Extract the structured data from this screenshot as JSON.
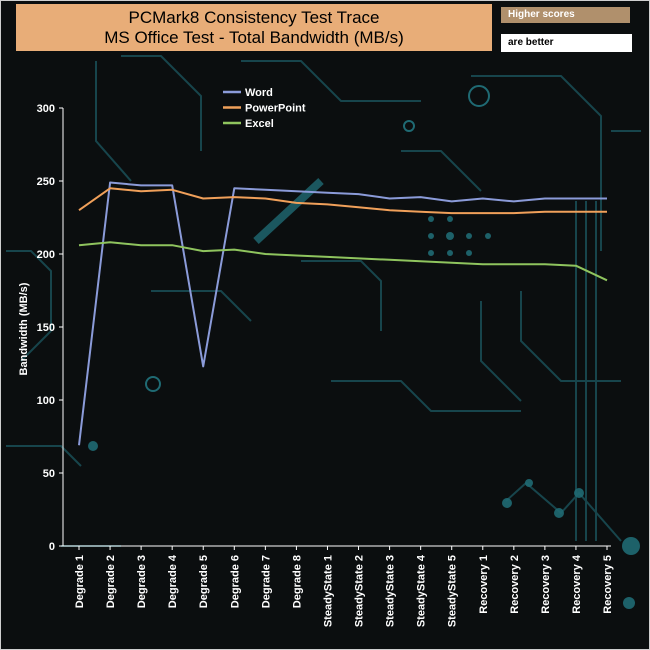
{
  "header": {
    "title_line1": "PCMark8 Consistency Test Trace",
    "title_line2": "MS Office Test - Total Bandwidth (MB/s)",
    "note_line1": "Higher scores",
    "note_line2": "are better"
  },
  "chart_data": {
    "type": "line",
    "title": "PCMark8 Consistency Test Trace MS Office Test - Total Bandwidth (MB/s)",
    "xlabel": "",
    "ylabel": "Bandwidth (MB/s)",
    "ylim": [
      0,
      300
    ],
    "yticks": [
      0,
      50,
      100,
      150,
      200,
      250,
      300
    ],
    "grid": false,
    "legend_position": "top-left",
    "categories": [
      "Degrade 1",
      "Degrade 2",
      "Degrade 3",
      "Degrade 4",
      "Degrade 5",
      "Degrade 6",
      "Degrade 7",
      "Degrade 8",
      "SteadyState 1",
      "SteadyState 2",
      "SteadyState 3",
      "SteadyState 4",
      "SteadyState 5",
      "Recovery 1",
      "Recovery 2",
      "Recovery 3",
      "Recovery 4",
      "Recovery 5"
    ],
    "series": [
      {
        "name": "Word",
        "color": "#8b9bd9",
        "values": [
          69,
          249,
          247,
          247,
          123,
          245,
          244,
          243,
          242,
          241,
          238,
          239,
          236,
          238,
          236,
          238,
          238,
          238
        ]
      },
      {
        "name": "PowerPoint",
        "color": "#f0a05a",
        "values": [
          230,
          245,
          243,
          244,
          238,
          239,
          238,
          235,
          234,
          232,
          230,
          229,
          228,
          228,
          228,
          229,
          229,
          229
        ]
      },
      {
        "name": "Excel",
        "color": "#8fc45e",
        "values": [
          206,
          208,
          206,
          206,
          202,
          203,
          200,
          199,
          198,
          197,
          196,
          195,
          194,
          193,
          193,
          193,
          192,
          182
        ]
      }
    ]
  }
}
